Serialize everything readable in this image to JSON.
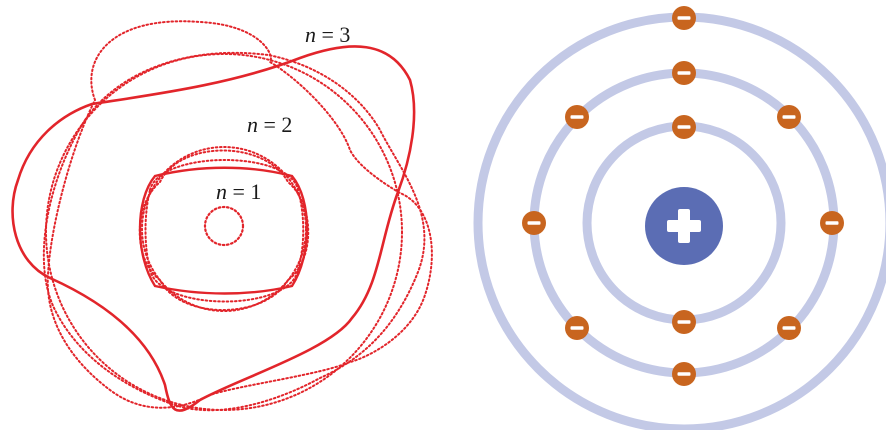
{
  "wave_diagram": {
    "color": "#e2252b",
    "orbits": [
      {
        "label_var": "n",
        "label_eq": " = 1",
        "n": 1
      },
      {
        "label_var": "n",
        "label_eq": " = 2",
        "n": 2
      },
      {
        "label_var": "n",
        "label_eq": " = 3",
        "n": 3
      }
    ]
  },
  "atom_diagram": {
    "shell_color": "#c3c9e6",
    "nucleus_color": "#5b6db4",
    "nucleus_symbol": "+",
    "electron_color": "#c8651f",
    "electron_symbol": "−",
    "shells": [
      {
        "name": "inner",
        "electron_count": 2
      },
      {
        "name": "middle",
        "electron_count": 8
      },
      {
        "name": "outer",
        "electron_count": 1
      }
    ]
  }
}
